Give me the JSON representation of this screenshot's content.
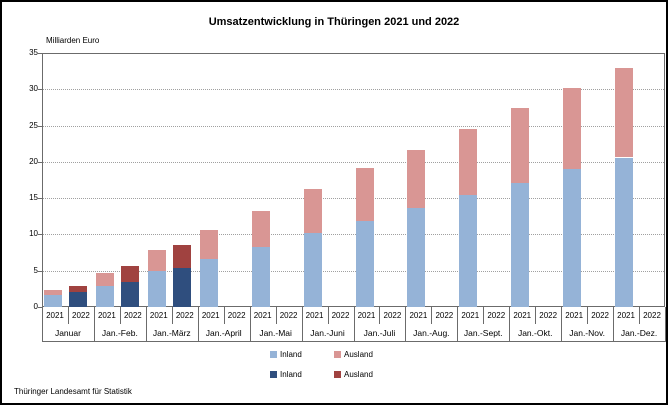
{
  "header": {
    "title": "Umsatzentwicklung in Thüringen 2021 und 2022"
  },
  "footer": {
    "source": "Thüringer Landesamt für Statistik"
  },
  "chart_data": {
    "type": "bar",
    "stacked": true,
    "grouped_by_year": true,
    "title": "Umsatzentwicklung in Thüringen 2021 und 2022",
    "ylabel": "Milliarden Euro",
    "ylim": [
      0,
      35
    ],
    "ytick_step": 5,
    "grid": "dotted-horizontal",
    "legend_position": "bottom",
    "categories": [
      "Januar",
      "Jan.-Feb.",
      "Jan.-März",
      "Jan.-April",
      "Jan.-Mai",
      "Jan.-Juni",
      "Jan.-Juli",
      "Jan.-Aug.",
      "Jan.-Sept.",
      "Jan.-Okt.",
      "Jan.-Nov.",
      "Jan.-Dez."
    ],
    "year_labels": [
      "2021",
      "2022"
    ],
    "series": [
      {
        "name": "Inland",
        "year": "2021",
        "color": "#95B3D7",
        "values": [
          1.6,
          2.9,
          5.0,
          6.6,
          8.2,
          10.2,
          11.9,
          13.6,
          15.4,
          17.1,
          19.0,
          20.6
        ]
      },
      {
        "name": "Ausland",
        "year": "2021",
        "color": "#D99694",
        "values": [
          0.8,
          1.8,
          2.9,
          4.0,
          5.0,
          6.1,
          7.2,
          8.1,
          9.1,
          10.3,
          11.2,
          12.4
        ]
      },
      {
        "name": "Inland",
        "year": "2022",
        "color": "#2F4E7E",
        "values": [
          2.0,
          3.5,
          5.4,
          null,
          null,
          null,
          null,
          null,
          null,
          null,
          null,
          null
        ]
      },
      {
        "name": "Ausland",
        "year": "2022",
        "color": "#A04240",
        "values": [
          0.9,
          2.1,
          3.2,
          null,
          null,
          null,
          null,
          null,
          null,
          null,
          null,
          null
        ]
      }
    ],
    "totals_2021": [
      2.4,
      4.7,
      7.9,
      10.6,
      13.2,
      16.3,
      19.1,
      21.7,
      24.5,
      27.4,
      30.2,
      33.0
    ],
    "totals_2022": [
      2.9,
      5.6,
      8.6,
      null,
      null,
      null,
      null,
      null,
      null,
      null,
      null,
      null
    ]
  },
  "legend": {
    "rows": [
      [
        {
          "label": "Inland",
          "color": "#95B3D7"
        },
        {
          "label": "Ausland",
          "color": "#D99694"
        }
      ],
      [
        {
          "label": "Inland",
          "color": "#2F4E7E"
        },
        {
          "label": "Ausland",
          "color": "#A04240"
        }
      ]
    ]
  }
}
